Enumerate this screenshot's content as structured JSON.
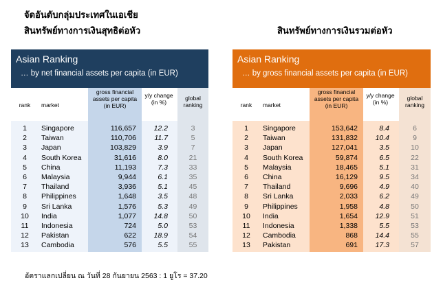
{
  "title_left_line1": "จัดอันดับกลุ่มประเทศในเอเชีย",
  "title_left_line2": "สินทรัพย์ทางการเงินสุทธิต่อหัว",
  "title_right": "สินทรัพย์ทางการเงินรวมต่อหัว",
  "footer": "อัตราแลกเปลี่ยน ณ วันที่ 28 กันยายน 2563 : 1 ยูโร = 37.20",
  "colors": {
    "left_header": "#1f3f5f",
    "left_value_col": "#c5d6ea",
    "left_row": "#eef3fa",
    "left_global": "#dfe5ec",
    "right_header": "#e06e0f",
    "right_value_col": "#f8b581",
    "right_row": "#fde2cd",
    "right_global": "#f4e2d3"
  },
  "chart_data": [
    {
      "type": "table",
      "title": "Asian Ranking",
      "subtitle": "… by net financial assets per capita (in EUR)",
      "columns": {
        "rank": "rank",
        "market": "market",
        "value": "gross financial assets per capita (in EUR)",
        "change": "y/y change (in %)",
        "global": "global ranking"
      },
      "rows": [
        {
          "rank": "1",
          "market": "Singapore",
          "value": "116,657",
          "change": "12.2",
          "global": "3"
        },
        {
          "rank": "2",
          "market": "Taiwan",
          "value": "110,706",
          "change": "11.7",
          "global": "5"
        },
        {
          "rank": "3",
          "market": "Japan",
          "value": "103,829",
          "change": "3.9",
          "global": "7"
        },
        {
          "rank": "4",
          "market": "South Korea",
          "value": "31,616",
          "change": "8.0",
          "global": "21"
        },
        {
          "rank": "5",
          "market": "China",
          "value": "11,193",
          "change": "7.3",
          "global": "33"
        },
        {
          "rank": "6",
          "market": "Malaysia",
          "value": "9,944",
          "change": "6.1",
          "global": "35"
        },
        {
          "rank": "7",
          "market": "Thailand",
          "value": "3,936",
          "change": "5.1",
          "global": "45"
        },
        {
          "rank": "8",
          "market": "Philippines",
          "value": "1,648",
          "change": "3.5",
          "global": "48"
        },
        {
          "rank": "9",
          "market": "Sri Lanka",
          "value": "1,576",
          "change": "5.3",
          "global": "49"
        },
        {
          "rank": "10",
          "market": "India",
          "value": "1,077",
          "change": "14.8",
          "global": "50"
        },
        {
          "rank": "11",
          "market": "Indonesia",
          "value": "724",
          "change": "5.0",
          "global": "53"
        },
        {
          "rank": "12",
          "market": "Pakistan",
          "value": "622",
          "change": "18.9",
          "global": "54"
        },
        {
          "rank": "13",
          "market": "Cambodia",
          "value": "576",
          "change": "5.5",
          "global": "55"
        }
      ]
    },
    {
      "type": "table",
      "title": "Asian Ranking",
      "subtitle": "… by gross financial assets per capita (in EUR)",
      "columns": {
        "rank": "rank",
        "market": "market",
        "value": "gross financial assets per capita (in EUR)",
        "change": "y/y change (in %)",
        "global": "global ranking"
      },
      "rows": [
        {
          "rank": "1",
          "market": "Singapore",
          "value": "153,642",
          "change": "8.4",
          "global": "6"
        },
        {
          "rank": "2",
          "market": "Taiwan",
          "value": "131,832",
          "change": "10.4",
          "global": "9"
        },
        {
          "rank": "3",
          "market": "Japan",
          "value": "127,041",
          "change": "3.5",
          "global": "10"
        },
        {
          "rank": "4",
          "market": "South Korea",
          "value": "59,874",
          "change": "6.5",
          "global": "22"
        },
        {
          "rank": "5",
          "market": "Malaysia",
          "value": "18,465",
          "change": "5.1",
          "global": "31"
        },
        {
          "rank": "6",
          "market": "China",
          "value": "16,129",
          "change": "9.5",
          "global": "34"
        },
        {
          "rank": "7",
          "market": "Thailand",
          "value": "9,696",
          "change": "4.9",
          "global": "40"
        },
        {
          "rank": "8",
          "market": "Sri Lanka",
          "value": "2,033",
          "change": "6.2",
          "global": "49"
        },
        {
          "rank": "9",
          "market": "Philippines",
          "value": "1,958",
          "change": "4.8",
          "global": "50"
        },
        {
          "rank": "10",
          "market": "India",
          "value": "1,654",
          "change": "12.9",
          "global": "51"
        },
        {
          "rank": "11",
          "market": "Indonesia",
          "value": "1,338",
          "change": "5.5",
          "global": "53"
        },
        {
          "rank": "12",
          "market": "Cambodia",
          "value": "868",
          "change": "14.4",
          "global": "55"
        },
        {
          "rank": "13",
          "market": "Pakistan",
          "value": "691",
          "change": "17.3",
          "global": "57"
        }
      ]
    }
  ]
}
